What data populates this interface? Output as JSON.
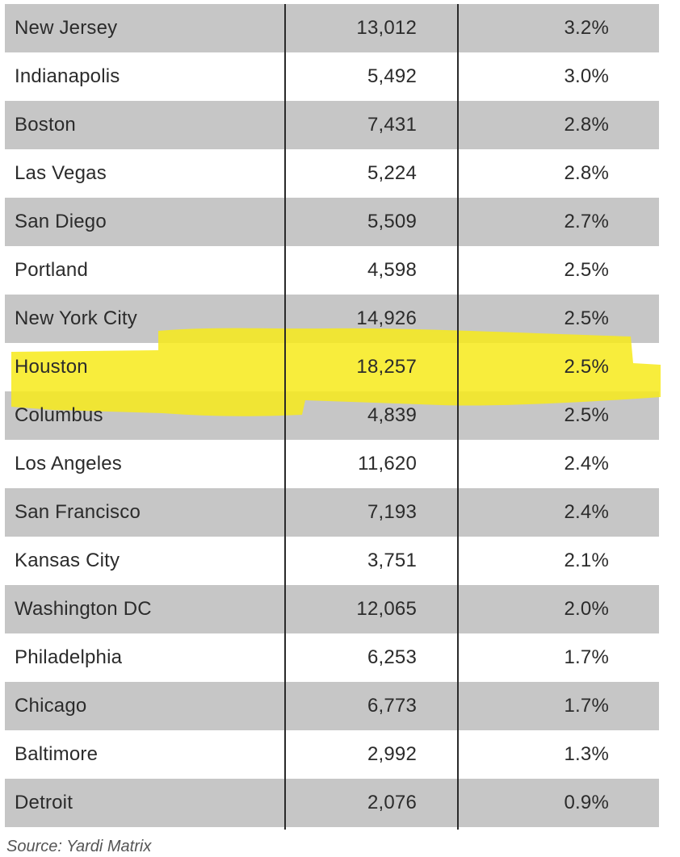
{
  "table": {
    "rows": [
      {
        "city": "New Jersey",
        "units": "13,012",
        "pct": "3.2%"
      },
      {
        "city": "Indianapolis",
        "units": "5,492",
        "pct": "3.0%"
      },
      {
        "city": "Boston",
        "units": "7,431",
        "pct": "2.8%"
      },
      {
        "city": "Las Vegas",
        "units": "5,224",
        "pct": "2.8%"
      },
      {
        "city": "San Diego",
        "units": "5,509",
        "pct": "2.7%"
      },
      {
        "city": "Portland",
        "units": "4,598",
        "pct": "2.5%"
      },
      {
        "city": "New York City",
        "units": "14,926",
        "pct": "2.5%"
      },
      {
        "city": "Houston",
        "units": "18,257",
        "pct": "2.5%"
      },
      {
        "city": "Columbus",
        "units": "4,839",
        "pct": "2.5%"
      },
      {
        "city": "Los Angeles",
        "units": "11,620",
        "pct": "2.4%"
      },
      {
        "city": "San Francisco",
        "units": "7,193",
        "pct": "2.4%"
      },
      {
        "city": "Kansas City",
        "units": "3,751",
        "pct": "2.1%"
      },
      {
        "city": "Washington DC",
        "units": "12,065",
        "pct": "2.0%"
      },
      {
        "city": "Philadelphia",
        "units": "6,253",
        "pct": "1.7%"
      },
      {
        "city": "Chicago",
        "units": "6,773",
        "pct": "1.7%"
      },
      {
        "city": "Baltimore",
        "units": "2,992",
        "pct": "1.3%"
      },
      {
        "city": "Detroit",
        "units": "2,076",
        "pct": "0.9%"
      }
    ],
    "highlighted_city": "Houston"
  },
  "colors": {
    "shaded_row": "#c6c6c6",
    "highlight": "#f7ea1a",
    "text": "#2b2b2b"
  },
  "source": "Source: Yardi Matrix"
}
